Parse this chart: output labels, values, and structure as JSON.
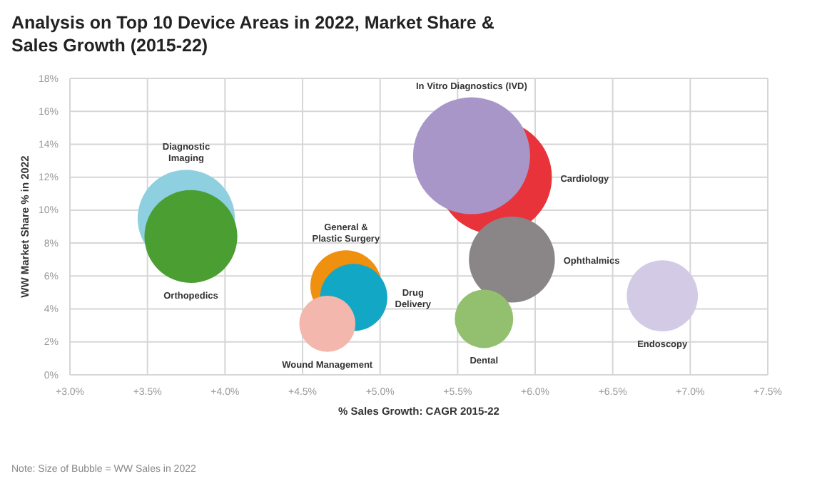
{
  "chart_data": {
    "type": "bubble",
    "title": "Analysis on Top 10 Device Areas in 2022, Market Share & Sales Growth (2015-22)",
    "xlabel": "% Sales Growth: CAGR 2015-22",
    "ylabel": "WW Market Share % in 2022",
    "annotations": [
      "Note: Size of Bubble = WW Sales in 2022"
    ],
    "xlim": [
      3.0,
      7.5
    ],
    "xticks": [
      {
        "value": 3.0,
        "label": "+3.0%"
      },
      {
        "value": 3.5,
        "label": "+3.5%"
      },
      {
        "value": 4.0,
        "label": "+4.0%"
      },
      {
        "value": 4.5,
        "label": "+4.5%"
      },
      {
        "value": 5.0,
        "label": "+5.0%"
      },
      {
        "value": 5.5,
        "label": "+5.5%"
      },
      {
        "value": 6.0,
        "label": "+6.0%"
      },
      {
        "value": 6.5,
        "label": "+6.5%"
      },
      {
        "value": 7.0,
        "label": "+7.0%"
      },
      {
        "value": 7.5,
        "label": "+7.5%"
      }
    ],
    "ylim": [
      0,
      18
    ],
    "yticks": [
      {
        "value": 0,
        "label": "0%"
      },
      {
        "value": 2,
        "label": "2%"
      },
      {
        "value": 4,
        "label": "4%"
      },
      {
        "value": 6,
        "label": "6%"
      },
      {
        "value": 8,
        "label": "8%"
      },
      {
        "value": 10,
        "label": "10%"
      },
      {
        "value": 12,
        "label": "12%"
      },
      {
        "value": 14,
        "label": "14%"
      },
      {
        "value": 16,
        "label": "16%"
      },
      {
        "value": 18,
        "label": "18%"
      }
    ],
    "grid": true,
    "series": [
      {
        "name": "Diagnostic Imaging",
        "color": "#8ecfe0",
        "x": [
          3.75
        ],
        "values": [
          9.5
        ],
        "sizes": [
          0.69
        ]
      },
      {
        "name": "Orthopedics",
        "color": "#4a9e32",
        "x": [
          3.78
        ],
        "values": [
          8.4
        ],
        "sizes": [
          0.63
        ]
      },
      {
        "name": "Cardiology",
        "color": "#e8333b",
        "x": [
          5.74
        ],
        "values": [
          12.0
        ],
        "sizes": [
          0.95
        ]
      },
      {
        "name": "In Vitro Diagnostics (IVD)",
        "color": "#a996c8",
        "x": [
          5.59
        ],
        "values": [
          13.3
        ],
        "sizes": [
          1
        ]
      },
      {
        "name": "Ophthalmics",
        "color": "#8a8687",
        "x": [
          5.85
        ],
        "values": [
          7.0
        ],
        "sizes": [
          0.54
        ]
      },
      {
        "name": "General & Plastic Surgery",
        "color": "#f0900f",
        "x": [
          4.78
        ],
        "values": [
          5.4
        ],
        "sizes": [
          0.37
        ]
      },
      {
        "name": "Drug Delivery",
        "color": "#12a7c5",
        "x": [
          4.83
        ],
        "values": [
          4.7
        ],
        "sizes": [
          0.33
        ]
      },
      {
        "name": "Wound Management",
        "color": "#f3b7ae",
        "x": [
          4.66
        ],
        "values": [
          3.1
        ],
        "sizes": [
          0.23
        ]
      },
      {
        "name": "Dental",
        "color": "#93c06f",
        "x": [
          5.67
        ],
        "values": [
          3.4
        ],
        "sizes": [
          0.25
        ]
      },
      {
        "name": "Endoscopy",
        "color": "#d3cbe6",
        "x": [
          6.82
        ],
        "values": [
          4.8
        ],
        "sizes": [
          0.37
        ]
      }
    ]
  }
}
